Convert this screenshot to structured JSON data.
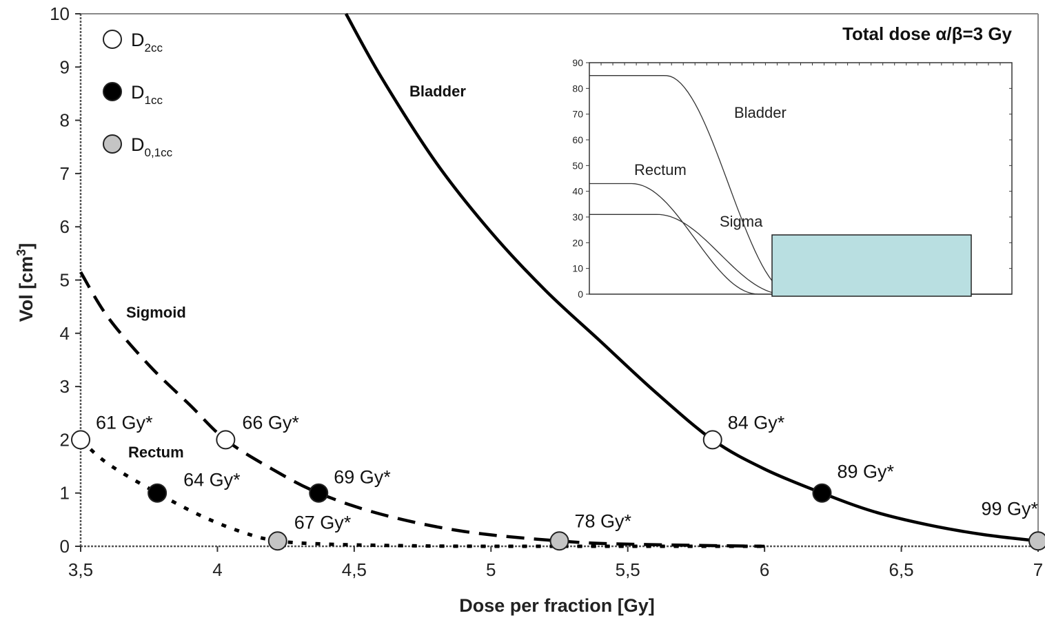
{
  "chart_data": {
    "type": "line",
    "title": "Total dose α/β=3 Gy",
    "xlabel": "Dose per fraction [Gy]",
    "ylabel_main": "Vol [cm",
    "ylabel_sup": "3",
    "ylabel_end": "]",
    "xlim": [
      3.5,
      7
    ],
    "ylim": [
      0,
      10
    ],
    "x_ticks": [
      {
        "v": 3.5,
        "label": "3,5"
      },
      {
        "v": 4,
        "label": "4"
      },
      {
        "v": 4.5,
        "label": "4,5"
      },
      {
        "v": 5,
        "label": "5"
      },
      {
        "v": 5.5,
        "label": "5,5"
      },
      {
        "v": 6,
        "label": "6"
      },
      {
        "v": 6.5,
        "label": "6,5"
      },
      {
        "v": 7,
        "label": "7"
      }
    ],
    "y_ticks": [
      {
        "v": 0,
        "label": "0"
      },
      {
        "v": 1,
        "label": "1"
      },
      {
        "v": 2,
        "label": "2"
      },
      {
        "v": 3,
        "label": "3"
      },
      {
        "v": 4,
        "label": "4"
      },
      {
        "v": 5,
        "label": "5"
      },
      {
        "v": 6,
        "label": "6"
      },
      {
        "v": 7,
        "label": "7"
      },
      {
        "v": 8,
        "label": "8"
      },
      {
        "v": 9,
        "label": "9"
      },
      {
        "v": 10,
        "label": "10"
      }
    ],
    "curves": [
      {
        "name": "Bladder",
        "style": "solid",
        "x": [
          4.47,
          4.6,
          4.8,
          5.0,
          5.2,
          5.4,
          5.6,
          5.81,
          6.0,
          6.21,
          6.4,
          6.6,
          6.8,
          7.0
        ],
        "y": [
          10.0,
          8.8,
          7.2,
          5.9,
          4.8,
          3.85,
          2.9,
          2.0,
          1.45,
          1.0,
          0.65,
          0.4,
          0.22,
          0.1
        ]
      },
      {
        "name": "Sigmoid",
        "style": "dashed",
        "x": [
          3.5,
          3.6,
          3.75,
          3.9,
          4.03,
          4.2,
          4.37,
          4.6,
          4.9,
          5.25,
          5.5,
          6.0
        ],
        "y": [
          5.15,
          4.3,
          3.4,
          2.65,
          2.0,
          1.45,
          1.0,
          0.6,
          0.28,
          0.1,
          0.04,
          0.0
        ]
      },
      {
        "name": "Rectum",
        "style": "dotted",
        "x": [
          3.5,
          3.6,
          3.78,
          3.95,
          4.1,
          4.22,
          4.4,
          4.7,
          5.0,
          5.5,
          6.0
        ],
        "y": [
          2.0,
          1.55,
          1.0,
          0.55,
          0.25,
          0.1,
          0.04,
          0.01,
          0.0,
          0.0,
          0.0
        ]
      }
    ],
    "markers": [
      {
        "x": 3.5,
        "y": 2.0,
        "type": "D2cc",
        "label": "61 Gy*"
      },
      {
        "x": 3.78,
        "y": 1.0,
        "type": "D1cc",
        "label": "64 Gy*"
      },
      {
        "x": 4.22,
        "y": 0.1,
        "type": "D0,1cc",
        "label": "67 Gy*"
      },
      {
        "x": 4.03,
        "y": 2.0,
        "type": "D2cc",
        "label": "66 Gy*"
      },
      {
        "x": 4.37,
        "y": 1.0,
        "type": "D1cc",
        "label": "69 Gy*"
      },
      {
        "x": 5.25,
        "y": 0.1,
        "type": "D0,1cc",
        "label": "78 Gy*"
      },
      {
        "x": 5.81,
        "y": 2.0,
        "type": "D2cc",
        "label": "84 Gy*"
      },
      {
        "x": 6.21,
        "y": 1.0,
        "type": "D1cc",
        "label": "89 Gy*"
      },
      {
        "x": 7.0,
        "y": 0.1,
        "type": "D0,1cc",
        "label": "99 Gy*"
      }
    ],
    "legend": [
      {
        "type": "D2cc",
        "main": "D",
        "sub": "2cc",
        "fill": "#ffffff"
      },
      {
        "type": "D1cc",
        "main": "D",
        "sub": "1cc",
        "fill": "#000000"
      },
      {
        "type": "D0,1cc",
        "main": "D",
        "sub": "0,1cc",
        "fill": "#c4c4c4"
      }
    ],
    "curve_labels": {
      "bladder": "Bladder",
      "sigmoid": "Sigmoid",
      "rectum": "Rectum"
    },
    "inset": {
      "type": "line",
      "ylim": [
        0,
        90
      ],
      "y_ticks": [
        "0",
        "10",
        "20",
        "30",
        "40",
        "50",
        "60",
        "70",
        "80",
        "90"
      ],
      "series": [
        {
          "name": "Bladder",
          "plateau": 85,
          "start": 0.18,
          "end": 0.48
        },
        {
          "name": "Rectum",
          "plateau": 43,
          "start": 0.1,
          "end": 0.4
        },
        {
          "name": "Sigma",
          "plateau": 31,
          "start": 0.16,
          "end": 0.46
        }
      ],
      "box_color": "#b9dfe1"
    }
  }
}
